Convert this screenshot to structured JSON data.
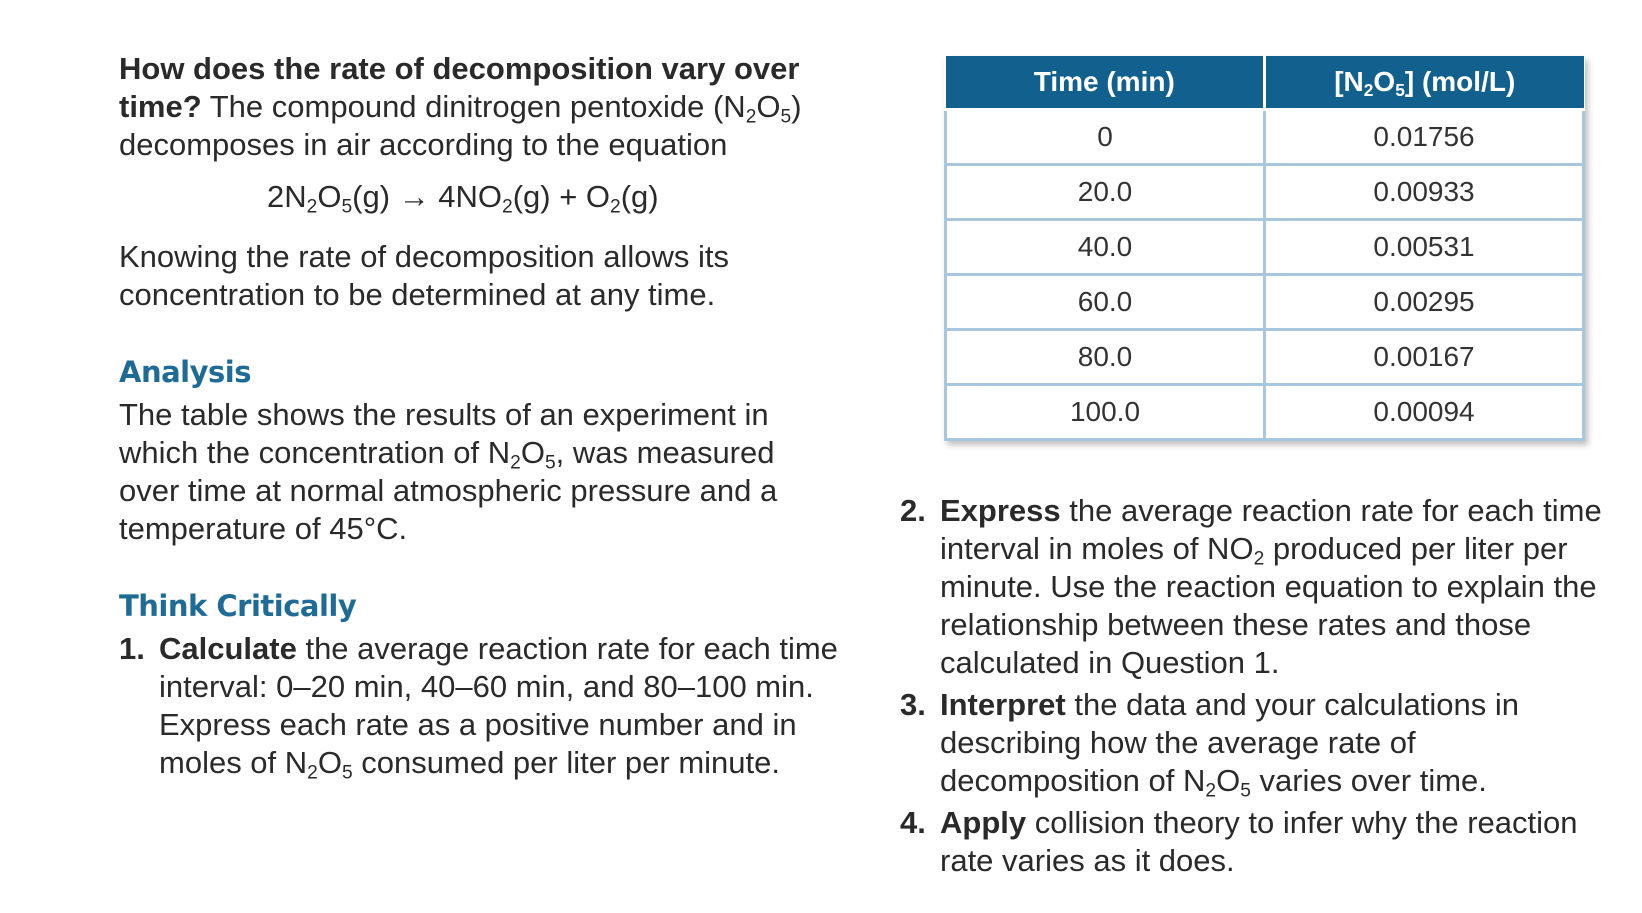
{
  "intro": {
    "question_bold": "How does the rate of decomposition vary over time?",
    "text_1": "The compound dinitrogen pentoxide (N",
    "sub_a": "2",
    "text_2": "O",
    "sub_b": "5",
    "text_3": ") decomposes in air according to the equation"
  },
  "equation": {
    "p1": "2N",
    "s1": "2",
    "p2": "O",
    "s2": "5",
    "p3": "(g) → 4NO",
    "s3": "2",
    "p4": "(g) + O",
    "s4": "2",
    "p5": "(g)"
  },
  "knowing_text": "Knowing the rate of decomposition allows its concentration to be determined at any time.",
  "analysis": {
    "heading": "Analysis",
    "t1": "The table shows the results of an experiment in which the concentration of N",
    "s1": "2",
    "t2": "O",
    "s2": "5",
    "t3": ", was measured over time at normal atmospheric pressure and a temperature of 45°C."
  },
  "think_critically": {
    "heading": "Think Critically",
    "q1": {
      "number": "1.",
      "verb": "Calculate",
      "t1": " the average reaction rate for each time interval: 0–20 min, 40–60 min, and 80–100 min. Express each rate as a positive number and in moles of N",
      "s1": "2",
      "t2": "O",
      "s2": "5",
      "t3": " consumed per liter per minute."
    },
    "q2": {
      "number": "2.",
      "verb": "Express",
      "t1": " the average reaction rate for each time interval in moles of NO",
      "s1": "2",
      "t2": " produced per liter per minute. Use the reaction equation to explain the relationship between these rates and those calculated in Question 1."
    },
    "q3": {
      "number": "3.",
      "verb": "Interpret",
      "t1": " the data and your calculations in describing how the average rate of decomposition of N",
      "s1": "2",
      "t2": "O",
      "s2": "5",
      "t3": " varies over time."
    },
    "q4": {
      "number": "4.",
      "verb": "Apply",
      "t1": " collision theory to infer why the reaction rate varies as it does."
    }
  },
  "table": {
    "header_time": "Time (min)",
    "header_conc_a": "[N",
    "header_conc_s1": "2",
    "header_conc_b": "O",
    "header_conc_s2": "5",
    "header_conc_c": "] (mol/L)",
    "rows": [
      {
        "time": "0",
        "conc": "0.01756"
      },
      {
        "time": "20.0",
        "conc": "0.00933"
      },
      {
        "time": "40.0",
        "conc": "0.00531"
      },
      {
        "time": "60.0",
        "conc": "0.00295"
      },
      {
        "time": "80.0",
        "conc": "0.00167"
      },
      {
        "time": "100.0",
        "conc": "0.00094"
      }
    ]
  },
  "colors": {
    "heading_blue": "#1d6b96",
    "table_header_bg": "#12608d",
    "table_border": "#a8c7de"
  }
}
